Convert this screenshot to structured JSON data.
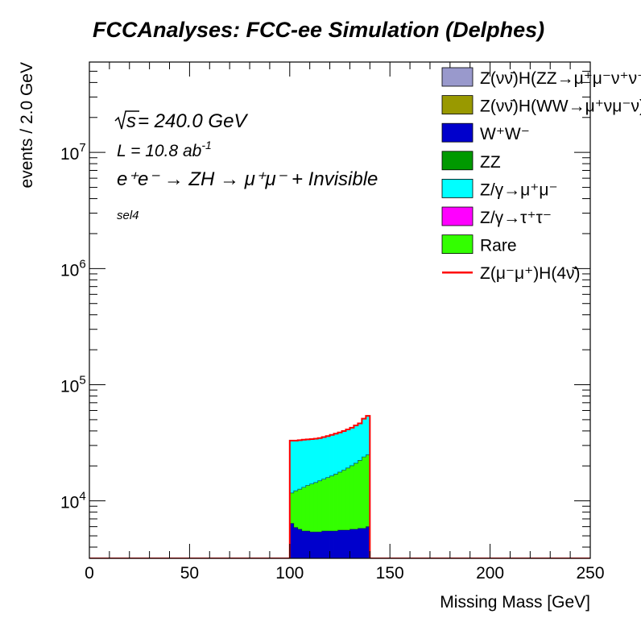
{
  "title": "FCCAnalyses: FCC-ee Simulation (Delphes)",
  "annotations": {
    "energy_sqrt": "s",
    "energy_rest": " = 240.0 GeV",
    "lumi_main": "L = 10.8 ab",
    "lumi_exp": "-1",
    "process": "e⁺e⁻ → ZH → μ⁺μ⁻ + Invisible",
    "selection": "sel4"
  },
  "chart_data": {
    "type": "stacked_histogram",
    "xlabel": "Missing Mass [GeV]",
    "ylabel": "events / 2.0 GeV",
    "xlim": [
      0,
      250
    ],
    "ylim": [
      3200,
      60000000
    ],
    "yscale": "log",
    "bin_width": 2.0,
    "grid": false,
    "legend_position": "top-right",
    "x_ticks": [
      "0",
      "50",
      "100",
      "150",
      "200",
      "250"
    ],
    "y_ticks": [
      {
        "value": 10000,
        "base": "10",
        "exp": "4"
      },
      {
        "value": 100000,
        "base": "10",
        "exp": "5"
      },
      {
        "value": 1000000,
        "base": "10",
        "exp": "6"
      },
      {
        "value": 10000000,
        "base": "10",
        "exp": "7"
      }
    ],
    "x_bin_edges": [
      100,
      102,
      104,
      106,
      108,
      110,
      112,
      114,
      116,
      118,
      120,
      122,
      124,
      126,
      128,
      130,
      132,
      134,
      136,
      138,
      140
    ],
    "stack_order": [
      "W⁺W⁻",
      "Rare",
      "Z/γ→μ⁺μ⁻"
    ],
    "stacks": [
      {
        "name": "W⁺W⁻",
        "color": "#0000cc",
        "values": [
          6400,
          5900,
          5700,
          5500,
          5500,
          5400,
          5400,
          5400,
          5500,
          5500,
          5500,
          5500,
          5600,
          5600,
          5600,
          5700,
          5700,
          5800,
          5800,
          6000
        ]
      },
      {
        "name": "Rare",
        "color": "#33ff00",
        "values": [
          11700,
          12200,
          12600,
          13100,
          13600,
          14000,
          14400,
          14900,
          15400,
          15900,
          16400,
          17000,
          17700,
          18400,
          19200,
          20100,
          21100,
          22300,
          23900,
          24900
        ]
      },
      {
        "name": "Z/γ→μ⁺μ⁻",
        "color": "#00ffff",
        "values": [
          33000,
          33000,
          33300,
          33600,
          33800,
          34000,
          34300,
          34700,
          35400,
          36100,
          37000,
          37900,
          38800,
          39900,
          41200,
          42600,
          44600,
          46500,
          51000,
          54000
        ]
      }
    ],
    "signal": {
      "name": "Z(μ⁻μ⁺)H(4ν̄)",
      "color": "#ff0000",
      "values": [
        33000,
        33000,
        33300,
        33600,
        33800,
        34000,
        34300,
        34700,
        35400,
        36100,
        37000,
        37900,
        38800,
        39900,
        41200,
        42600,
        44600,
        46500,
        51000,
        54000
      ]
    },
    "legend": [
      {
        "label": "Z(νν̄)H(ZZ→μ⁺μ⁻ν⁺ν⁻)",
        "color": "#9999cc",
        "kind": "box"
      },
      {
        "label": "Z(νν̄)H(WW→μ⁺νμ⁻ν)",
        "color": "#999900",
        "kind": "box"
      },
      {
        "label": "W⁺W⁻",
        "color": "#0000cc",
        "kind": "box"
      },
      {
        "label": "ZZ",
        "color": "#009900",
        "kind": "box"
      },
      {
        "label": "Z/γ→μ⁺μ⁻",
        "color": "#00ffff",
        "kind": "box"
      },
      {
        "label": "Z/γ→τ⁺τ⁻",
        "color": "#ff00ff",
        "kind": "box"
      },
      {
        "label": "Rare",
        "color": "#33ff00",
        "kind": "box"
      },
      {
        "label": "Z(μ⁻μ⁺)H(4ν̄)",
        "color": "#ff0000",
        "kind": "line"
      }
    ]
  }
}
